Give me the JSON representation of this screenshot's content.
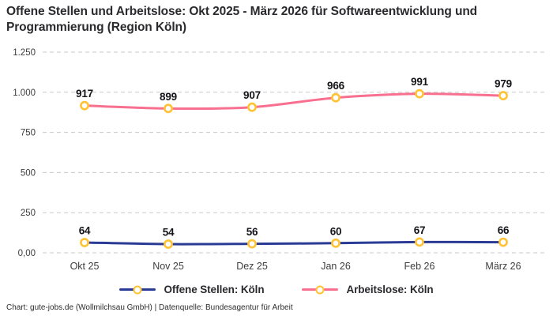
{
  "title": "Offene Stellen und Arbeitslose: Okt 2025 - März 2026 für Softwareentwicklung und\nProgrammierung (Region Köln)",
  "footer": "Chart: gute-jobs.de (Wollmilchsau GmbH) | Datenquelle: Bundesagentur für Arbeit",
  "colors": {
    "background": "#ffffff",
    "title_text": "#2a2a2e",
    "tick_text": "#3d3d3d",
    "data_label_text": "#141419",
    "gridline": "#c9c9c9",
    "offene_stellen_line": "#2A3B96",
    "arbeitslose_line": "#F8708F",
    "marker_stroke": "#FFC233",
    "marker_fill": "#ffffff"
  },
  "chart_data": {
    "type": "line",
    "title": "Offene Stellen und Arbeitslose: Okt 2025 - März 2026 für Softwareentwicklung und Programmierung (Region Köln)",
    "categories": [
      "Okt 25",
      "Nov 25",
      "Dez 25",
      "Jan 26",
      "Feb 26",
      "März 26"
    ],
    "series": [
      {
        "name": "Offene Stellen: Köln",
        "values": [
          64,
          54,
          56,
          60,
          67,
          66
        ],
        "color": "#2A3B96"
      },
      {
        "name": "Arbeitslose: Köln",
        "values": [
          917,
          899,
          907,
          966,
          991,
          979
        ],
        "color": "#F8708F"
      }
    ],
    "data_labels": {
      "Offene Stellen: Köln": [
        "64",
        "54",
        "56",
        "60",
        "67",
        "66"
      ],
      "Arbeitslose: Köln": [
        "917",
        "899",
        "907",
        "966",
        "991",
        "979"
      ]
    },
    "xlabel": "",
    "ylabel": "",
    "ylim": [
      0,
      1250
    ],
    "yticks": [
      0,
      250,
      500,
      750,
      1000,
      1250
    ],
    "ytick_labels": [
      "0,00",
      "250",
      "500",
      "750",
      "1.000",
      "1.250"
    ],
    "grid": "horizontal-dashed",
    "legend_position": "bottom",
    "marker": "open-circle-yellow"
  }
}
